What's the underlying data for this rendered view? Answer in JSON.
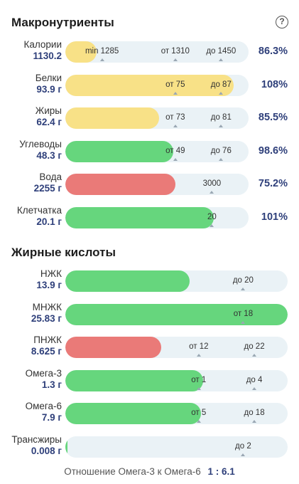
{
  "macros": {
    "title": "Макронутриенты",
    "help_icon": "?",
    "rows": [
      {
        "name": "Калории",
        "value": "1130.2",
        "fill": 0.172,
        "color": "yellow",
        "percent": "86.3%",
        "markers": [
          {
            "text": "min 1285",
            "pos": 0.2
          },
          {
            "text": "от 1310",
            "pos": 0.6
          },
          {
            "text": "до 1450",
            "pos": 0.85
          }
        ]
      },
      {
        "name": "Белки",
        "value": "93.9 г",
        "fill": 0.92,
        "color": "yellow",
        "percent": "108%",
        "markers": [
          {
            "text": "от 75",
            "pos": 0.6
          },
          {
            "text": "до 87",
            "pos": 0.85
          }
        ]
      },
      {
        "name": "Жиры",
        "value": "62.4 г",
        "fill": 0.51,
        "color": "yellow",
        "percent": "85.5%",
        "markers": [
          {
            "text": "от 73",
            "pos": 0.6
          },
          {
            "text": "до 81",
            "pos": 0.85
          }
        ]
      },
      {
        "name": "Углеводы",
        "value": "48.3 г",
        "fill": 0.59,
        "color": "green",
        "percent": "98.6%",
        "markers": [
          {
            "text": "от 49",
            "pos": 0.6
          },
          {
            "text": "до 76",
            "pos": 0.85
          }
        ]
      },
      {
        "name": "Вода",
        "value": "2255 г",
        "fill": 0.6,
        "color": "red",
        "percent": "75.2%",
        "markers": [
          {
            "text": "3000",
            "pos": 0.8
          }
        ]
      },
      {
        "name": "Клетчатка",
        "value": "20.1 г",
        "fill": 0.81,
        "color": "green",
        "percent": "101%",
        "markers": [
          {
            "text": "20",
            "pos": 0.8
          }
        ]
      }
    ]
  },
  "fatty": {
    "title": "Жирные кислоты",
    "rows": [
      {
        "name": "НЖК",
        "value": "13.9 г",
        "fill": 0.56,
        "color": "green",
        "markers": [
          {
            "text": "до 20",
            "pos": 0.8
          }
        ]
      },
      {
        "name": "МНЖК",
        "value": "25.83 г",
        "fill": 1.0,
        "color": "green",
        "markers": [
          {
            "text": "от 18",
            "pos": 0.8
          }
        ]
      },
      {
        "name": "ПНЖК",
        "value": "8.625 г",
        "fill": 0.43,
        "color": "red",
        "markers": [
          {
            "text": "от 12",
            "pos": 0.6
          },
          {
            "text": "до 22",
            "pos": 0.85
          }
        ]
      },
      {
        "name": "Омега-3",
        "value": "1.3 г",
        "fill": 0.62,
        "color": "green",
        "markers": [
          {
            "text": "от 1",
            "pos": 0.6
          },
          {
            "text": "до 4",
            "pos": 0.85
          }
        ]
      },
      {
        "name": "Омега-6",
        "value": "7.9 г",
        "fill": 0.61,
        "color": "green",
        "markers": [
          {
            "text": "от 5",
            "pos": 0.6
          },
          {
            "text": "до 18",
            "pos": 0.85
          }
        ]
      },
      {
        "name": "Трансжиры",
        "value": "0.008 г",
        "fill": 0.004,
        "color": "green",
        "markers": [
          {
            "text": "до 2",
            "pos": 0.8
          }
        ]
      }
    ]
  },
  "ratio": {
    "label": "Отношение Омега-3 к Омега-6",
    "value": "1 : 6.1"
  }
}
